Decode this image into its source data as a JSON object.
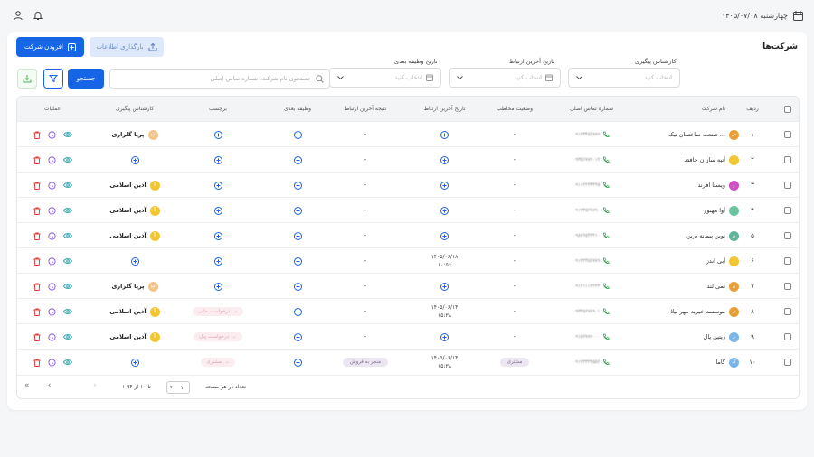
{
  "topbar": {
    "date": "چهارشنبه ۱۴۰۵/۰۷/۰۸"
  },
  "header": {
    "title": "شرکت‌ها",
    "add_label": "افزودن شرکت",
    "upload_label": "بارگذاری اطلاعات"
  },
  "filters": {
    "expert_label": "کارشناس پیگیری",
    "expert_placeholder": "انتخاب کنید",
    "last_contact_label": "تاریخ آخرین ارتباط",
    "last_contact_placeholder": "انتخاب کنید",
    "next_task_label": "تاریخ وظیفه بعدی",
    "next_task_placeholder": "انتخاب کنید",
    "search_placeholder": "جستجوی نام شرکت، شماره تماس اصلی",
    "search_button": "جستجو"
  },
  "table": {
    "headers": {
      "row": "ردیف",
      "company": "نام شرکت",
      "phone": "شماره تماس اصلی",
      "status": "وضعیت مخاطب",
      "last_contact": "تاریخ آخرین ارتباط",
      "result": "نتیجه آخرین ارتباط",
      "next_task": "وظیفه بعدی",
      "tag": "برچسب",
      "expert": "کارشناس پیگیری",
      "actions": "عملیات"
    },
    "rows": [
      {
        "n": "۱",
        "company": "صنعت ساختمان نیک ...",
        "initial": "ص",
        "avatar_color": "#e8a036",
        "phone": "۰۹۱۲۳۴۵۶۷۸۹",
        "status": "-",
        "last_contact": "",
        "last_time": "",
        "result": "-",
        "tag": "",
        "expert": "پریا گلزاری",
        "expert_initial": "پ",
        "expert_color": "#f4c58f"
      },
      {
        "n": "۲",
        "company": "آتیه سازان حافظ",
        "initial": "آ",
        "avatar_color": "#f3c530",
        "phone": "۰۹۳۵۶۷۸۹۰۱۲",
        "status": "-",
        "last_contact": "",
        "last_time": "",
        "result": "-",
        "tag": "",
        "expert": "",
        "expert_initial": "",
        "expert_color": ""
      },
      {
        "n": "۳",
        "company": "ویستا افرند",
        "initial": "و",
        "avatar_color": "#d14fc6",
        "phone": "۰۹۱۱۲۲۳۳۴۴۵",
        "status": "-",
        "last_contact": "",
        "last_time": "",
        "result": "-",
        "tag": "",
        "expert": "آذین اسلامی",
        "expert_initial": "آ",
        "expert_color": "#f3c530"
      },
      {
        "n": "۴",
        "company": "آوا مهتور",
        "initial": "آ",
        "avatar_color": "#6cc3a0",
        "phone": "۰۹۱۲۴۵۶۷۸۹۰",
        "status": "-",
        "last_contact": "",
        "last_time": "",
        "result": "-",
        "tag": "",
        "expert": "آذین اسلامی",
        "expert_initial": "آ",
        "expert_color": "#f3c530"
      },
      {
        "n": "۵",
        "company": "نوین پیمانه برین",
        "initial": "ن",
        "avatar_color": "#5fb49a",
        "phone": "۰۹۸۷۶۵۴۳۲۱۰",
        "status": "-",
        "last_contact": "",
        "last_time": "",
        "result": "-",
        "tag": "",
        "expert": "آذین اسلامی",
        "expert_initial": "آ",
        "expert_color": "#f3c530"
      },
      {
        "n": "۶",
        "company": "آبی اندز",
        "initial": "آ",
        "avatar_color": "#f3c530",
        "phone": "۰۹۱۳۲۴۵۶۷۸۹",
        "status": "-",
        "last_contact": "۱۴۰۵/۰۶/۱۸",
        "last_time": "۱۰:۵۶",
        "result": "-",
        "tag": "",
        "expert": "",
        "expert_initial": "",
        "expert_color": ""
      },
      {
        "n": "۷",
        "company": "نمی لند",
        "initial": "ن",
        "avatar_color": "#e8a036",
        "phone": "۰۹۱۲۱۱۱۲۲۳۳",
        "status": "-",
        "last_contact": "",
        "last_time": "",
        "result": "-",
        "tag": "",
        "expert": "پریا گلزاری",
        "expert_initial": "پ",
        "expert_color": "#f4c58f"
      },
      {
        "n": "۸",
        "company": "موسسه خیریه مهر لیلا",
        "initial": "م",
        "avatar_color": "#e8a036",
        "phone": "۰۹۳۴۵۶۷۸۹۰۱",
        "status": "-",
        "last_contact": "۱۴۰۵/۰۶/۱۴",
        "last_time": "۱۵:۳۸",
        "result": "-",
        "tag": "درخواست مالی",
        "expert": "آذین اسلامی",
        "expert_initial": "آ",
        "expert_color": "#f3c530"
      },
      {
        "n": "۹",
        "company": "زیتین پال",
        "initial": "ز",
        "avatar_color": "#7ab6ea",
        "phone": "۰۹۱۵۶۷۸۹۰۰۰",
        "status": "-",
        "last_contact": "",
        "last_time": "",
        "result": "-",
        "tag": "درخواست پیک",
        "expert": "آذین اسلامی",
        "expert_initial": "آ",
        "expert_color": "#f3c530"
      },
      {
        "n": "۱۰",
        "company": "گاما",
        "initial": "گ",
        "avatar_color": "#7ab6ea",
        "phone": "۰۹۱۲۳۳۴۴۵۵۶",
        "status": "مشتری",
        "last_contact": "۱۴۰۵/۰۶/۱۴",
        "last_time": "۱۵:۳۸",
        "result": "منجر به فروش",
        "tag": "مشتری",
        "expert": "",
        "expert_initial": "",
        "expert_color": ""
      }
    ]
  },
  "pager": {
    "per_page_label": "تعداد در هر صفحه",
    "per_page_value": "۱۰",
    "range": "۱ تا ۱۰ از ۹۴"
  },
  "colors": {
    "primary": "#1565e6",
    "danger": "#e53935",
    "violet": "#8e5bd8",
    "teal": "#2aa7b0",
    "green": "#35a853"
  }
}
